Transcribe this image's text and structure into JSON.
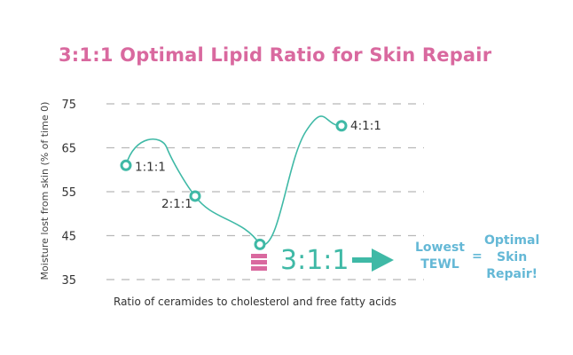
{
  "title": "3:1:1 Optimal Lipid Ratio for Skin Repair",
  "chart_data": {
    "type": "line",
    "title": "3:1:1 Optimal Lipid Ratio for Skin Repair",
    "xlabel": "Ratio of ceramides to cholesterol and free fatty acids",
    "ylabel": "Moisture lost from skin (% of time 0)",
    "ylim": [
      35,
      75
    ],
    "yticks": [
      35,
      45,
      55,
      65,
      75
    ],
    "grid": true,
    "points": [
      {
        "label": "1:1:1",
        "y": 61
      },
      {
        "label": "2:1:1",
        "y": 54
      },
      {
        "label": "3:1:1",
        "y": 43
      },
      {
        "label": "4:1:1",
        "y": 70
      }
    ]
  },
  "annotation": {
    "highlight": "3:1:1",
    "lowest": [
      "Lowest",
      "TEWL"
    ],
    "equals": "=",
    "optimal": [
      "Optimal",
      "Skin",
      "Repair!"
    ],
    "colors": {
      "title": "#d9699f",
      "line": "#3fb9a6",
      "result": "#64b8d6",
      "icon": "#d9699f"
    }
  }
}
